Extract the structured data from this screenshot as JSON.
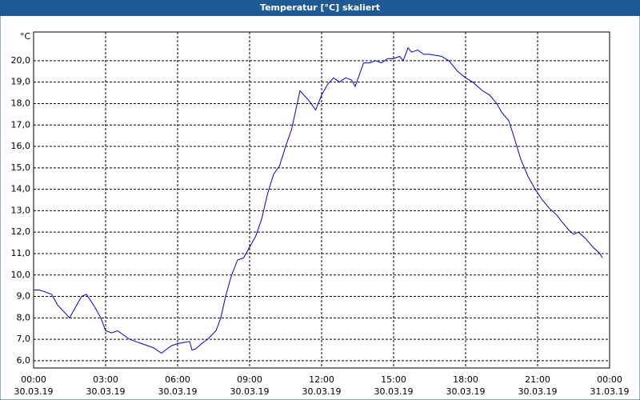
{
  "chart_data": {
    "type": "line",
    "title": "Temperatur [°C] skaliert",
    "y_unit": "°C",
    "series": [
      {
        "name": "Temperatur",
        "color": "#0000cc",
        "x": [
          0,
          0.25,
          0.5,
          0.75,
          1.0,
          1.25,
          1.5,
          1.75,
          2.0,
          2.2,
          2.5,
          2.8,
          3.0,
          3.25,
          3.5,
          3.75,
          4.0,
          4.25,
          4.5,
          4.75,
          5.0,
          5.33,
          5.5,
          5.75,
          6.0,
          6.25,
          6.5,
          6.6,
          6.75,
          7.0,
          7.25,
          7.6,
          7.8,
          8.0,
          8.25,
          8.5,
          8.75,
          9.0,
          9.25,
          9.5,
          9.75,
          10.0,
          10.25,
          10.5,
          10.75,
          11.1,
          11.5,
          11.75,
          12.0,
          12.25,
          12.5,
          12.75,
          13.0,
          13.25,
          13.4,
          13.75,
          14.0,
          14.25,
          14.5,
          14.75,
          15.0,
          15.25,
          15.4,
          15.6,
          15.75,
          16.0,
          16.25,
          16.5,
          17.0,
          17.3,
          17.67,
          18.0,
          18.3,
          18.7,
          19.0,
          19.3,
          19.5,
          19.8,
          20.0,
          20.3,
          20.6,
          20.9,
          21.2,
          21.5,
          21.8,
          22.0,
          22.3,
          22.5,
          22.7,
          23.0,
          23.3,
          23.6,
          23.7
        ],
        "values": [
          9.3,
          9.3,
          9.2,
          9.1,
          8.6,
          8.3,
          8.0,
          8.5,
          9.0,
          9.1,
          8.6,
          8.0,
          7.4,
          7.3,
          7.4,
          7.2,
          7.0,
          6.9,
          6.8,
          6.7,
          6.6,
          6.35,
          6.5,
          6.7,
          6.8,
          6.85,
          6.9,
          6.5,
          6.55,
          6.8,
          7.0,
          7.4,
          8.0,
          9.0,
          10.0,
          10.7,
          10.8,
          11.3,
          11.8,
          12.6,
          13.8,
          14.7,
          15.1,
          16.0,
          16.8,
          18.6,
          18.1,
          17.7,
          18.4,
          18.9,
          19.2,
          19.0,
          19.2,
          19.1,
          18.8,
          19.9,
          19.9,
          20.0,
          19.9,
          20.1,
          20.1,
          20.2,
          20.0,
          20.6,
          20.4,
          20.5,
          20.3,
          20.3,
          20.2,
          20.0,
          19.5,
          19.2,
          19.0,
          18.6,
          18.4,
          18.0,
          17.6,
          17.2,
          16.5,
          15.4,
          14.6,
          14.0,
          13.5,
          13.1,
          12.8,
          12.5,
          12.1,
          11.9,
          12.0,
          11.7,
          11.3,
          11.0,
          10.8
        ]
      }
    ],
    "xlim": [
      0,
      24
    ],
    "xticks": [
      {
        "value": 0,
        "label": "00:00",
        "date": "30.03.19"
      },
      {
        "value": 3,
        "label": "03:00",
        "date": "30.03.19"
      },
      {
        "value": 6,
        "label": "06:00",
        "date": "30.03.19"
      },
      {
        "value": 9,
        "label": "09:00",
        "date": "30.03.19"
      },
      {
        "value": 12,
        "label": "12:00",
        "date": "30.03.19"
      },
      {
        "value": 15,
        "label": "15:00",
        "date": "30.03.19"
      },
      {
        "value": 18,
        "label": "18:00",
        "date": "30.03.19"
      },
      {
        "value": 21,
        "label": "21:00",
        "date": "30.03.19"
      },
      {
        "value": 24,
        "label": "00:00",
        "date": "31.03.19"
      }
    ],
    "ylim": [
      5.66,
      21.34
    ],
    "yticks": [
      {
        "value": 6,
        "label": "6,0"
      },
      {
        "value": 7,
        "label": "7,0"
      },
      {
        "value": 8,
        "label": "8,0"
      },
      {
        "value": 9,
        "label": "9,0"
      },
      {
        "value": 10,
        "label": "10,0"
      },
      {
        "value": 11,
        "label": "11,0"
      },
      {
        "value": 12,
        "label": "12,0"
      },
      {
        "value": 13,
        "label": "13,0"
      },
      {
        "value": 14,
        "label": "14,0"
      },
      {
        "value": 15,
        "label": "15,0"
      },
      {
        "value": 16,
        "label": "16,0"
      },
      {
        "value": 17,
        "label": "17,0"
      },
      {
        "value": 18,
        "label": "18,0"
      },
      {
        "value": 19,
        "label": "19,0"
      },
      {
        "value": 20,
        "label": "20,0"
      }
    ],
    "grid": true
  }
}
